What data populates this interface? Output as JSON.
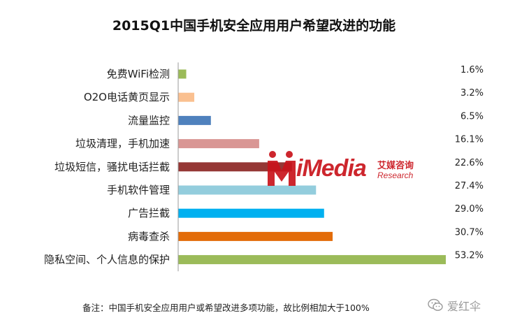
{
  "chart_data": {
    "type": "bar",
    "orientation": "horizontal",
    "title": "2015Q1中国手机安全应用用户希望改进的功能",
    "categories": [
      "免费WiFi检测",
      "O2O电话黄页显示",
      "流量监控",
      "垃圾清理，手机加速",
      "垃圾短信，骚扰电话拦截",
      "手机软件管理",
      "广告拦截",
      "病毒查杀",
      "隐私空间、个人信息的保护"
    ],
    "values": [
      1.6,
      3.2,
      6.5,
      16.1,
      22.6,
      27.4,
      29.0,
      30.7,
      53.2
    ],
    "value_labels": [
      "1.6%",
      "3.2%",
      "6.5%",
      "16.1%",
      "22.6%",
      "27.4%",
      "29.0%",
      "30.7%",
      "53.2%"
    ],
    "colors": [
      "#9bbb59",
      "#fac090",
      "#4f81bd",
      "#d99694",
      "#953735",
      "#93cddd",
      "#00b0f0",
      "#e36c09",
      "#9bbb59"
    ],
    "xlim": [
      0,
      53.2
    ],
    "grid": false,
    "legend": "none"
  },
  "footnote": "备注：中国手机安全应用用户或希望改进多项功能，故比例相加大于100%",
  "watermark": {
    "media": "iMedia",
    "cn": "艾媒咨询",
    "research": "Research",
    "color": "#c9141c"
  },
  "wechat": {
    "icon": "wechat-icon",
    "text": "爱红伞"
  }
}
